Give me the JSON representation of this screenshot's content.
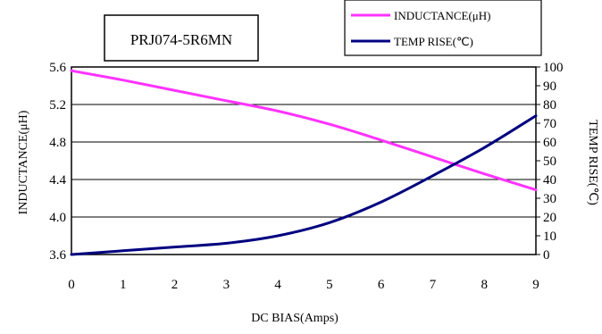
{
  "part_label": "PRJ074-5R6MN",
  "chart_data": {
    "type": "line",
    "title": "",
    "xlabel": "DC BIAS(Amps)",
    "ylabel_left": "INDUCTANCE(μH)",
    "ylabel_right": "TEMP RISE(℃)",
    "xlim": [
      0,
      9
    ],
    "ylim_left": [
      3.6,
      5.6
    ],
    "ylim_right": [
      0,
      100
    ],
    "x_ticks": [
      "0",
      "1",
      "2",
      "3",
      "4",
      "5",
      "6",
      "7",
      "8",
      "9"
    ],
    "y_left_ticks": [
      "3.6",
      "4.0",
      "4.4",
      "4.8",
      "5.2",
      "5.6"
    ],
    "y_right_ticks": [
      "0",
      "10",
      "20",
      "30",
      "40",
      "50",
      "60",
      "70",
      "80",
      "90",
      "100"
    ],
    "grid": "horizontal",
    "legend": "top-right",
    "series": [
      {
        "name": "INDUCTANCE(μH)",
        "axis": "left",
        "color": "#ff33ff",
        "x": [
          0,
          1,
          2,
          3,
          4,
          5,
          6,
          7,
          8,
          9
        ],
        "y": [
          5.56,
          5.46,
          5.35,
          5.24,
          5.13,
          4.99,
          4.82,
          4.64,
          4.46,
          4.29
        ]
      },
      {
        "name": "TEMP RISE(℃)",
        "axis": "right",
        "color": "#000080",
        "x": [
          0,
          1,
          2,
          3,
          4,
          5,
          6,
          7,
          8,
          9
        ],
        "y": [
          0,
          2,
          4,
          6,
          10,
          17,
          28,
          42,
          57,
          74
        ]
      }
    ]
  }
}
